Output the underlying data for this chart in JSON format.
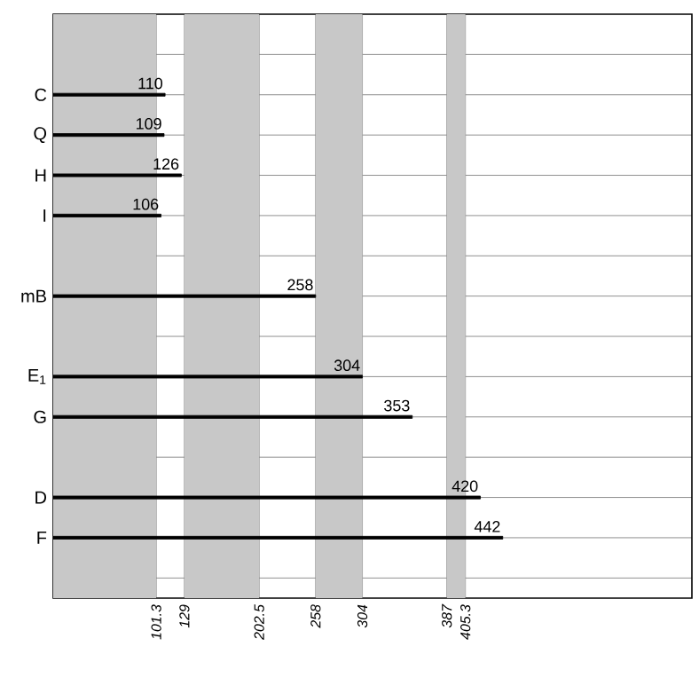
{
  "chart_data": {
    "type": "bar",
    "orientation": "horizontal",
    "categories": [
      null,
      "C",
      "Q",
      "H",
      "I",
      null,
      "mB",
      null,
      "E$_{1}$",
      "G",
      null,
      "D",
      "F",
      null
    ],
    "values": [
      null,
      110,
      109,
      126,
      106,
      null,
      258,
      null,
      304,
      353,
      null,
      420,
      442,
      null
    ],
    "color": "#000000",
    "data_labels": true,
    "xlim": [
      0,
      628
    ],
    "xticks": [
      101.3,
      129,
      202.5,
      258,
      304,
      387,
      405.3
    ],
    "bands": [
      {
        "axis": "x",
        "from": 0,
        "to": 101.3,
        "color": "#c8c8c8"
      },
      {
        "axis": "x",
        "from": 129,
        "to": 202.5,
        "color": "#c8c8c8"
      },
      {
        "axis": "x",
        "from": 258,
        "to": 304,
        "color": "#c8c8c8"
      },
      {
        "axis": "x",
        "from": 387,
        "to": 405.3,
        "color": "#c8c8c8"
      }
    ],
    "grid": true
  }
}
